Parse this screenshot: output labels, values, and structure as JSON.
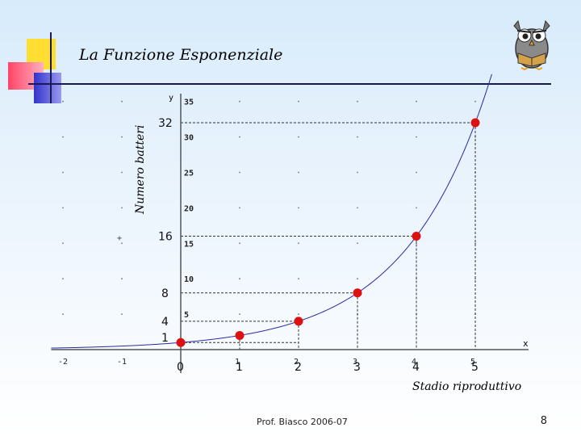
{
  "slide": {
    "title": "La Funzione Esponenziale",
    "footer": "Prof. Biasco 2006-07",
    "page_number": "8"
  },
  "colors": {
    "deco_yellow": "#ffdd33",
    "deco_red": "#ff4466",
    "deco_blue": "#3333cc",
    "curve": "#2a2aa0",
    "point": "#dd1111",
    "dashed": "#333333"
  },
  "chart_data": {
    "type": "line",
    "xlabel": "Stadio riproduttivo",
    "ylabel": "Numero batteri",
    "x_axis_letter": "x",
    "y_axis_letter": "y",
    "xlim": [
      -2,
      5.8
    ],
    "ylim": [
      0,
      35
    ],
    "x_ticks": [
      "-2",
      "-1",
      "1",
      "2",
      "3",
      "4",
      "5"
    ],
    "y_ticks": [
      "5",
      "10",
      "15",
      "20",
      "25",
      "30",
      "35"
    ],
    "x_point_labels": [
      "0",
      "1",
      "2",
      "3",
      "4",
      "5"
    ],
    "y_point_labels": [
      "1",
      "4",
      "8",
      "16",
      "32"
    ],
    "grid": "dotted",
    "function": "y = 2^x",
    "points": [
      {
        "x": 0,
        "y": 1
      },
      {
        "x": 1,
        "y": 2
      },
      {
        "x": 2,
        "y": 4
      },
      {
        "x": 3,
        "y": 8
      },
      {
        "x": 4,
        "y": 16
      },
      {
        "x": 5,
        "y": 32
      }
    ]
  }
}
